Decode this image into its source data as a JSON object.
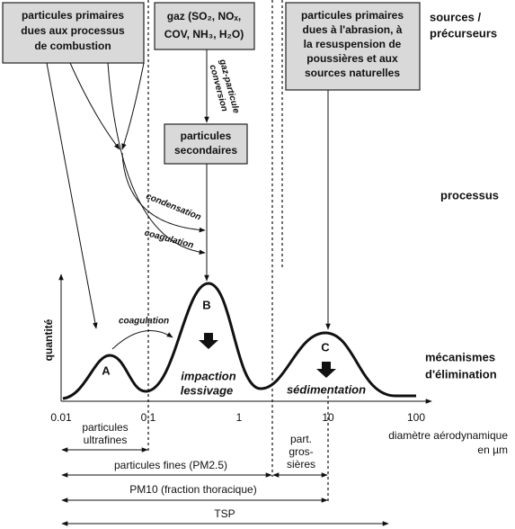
{
  "sources": [
    {
      "lines": [
        "particules primaires",
        "dues aux processus",
        "de combustion"
      ]
    },
    {
      "lines": [
        "gaz (SO₂, NOₓ,",
        "COV, NH₃, H₂O)"
      ]
    },
    {
      "lines": [
        "particules primaires",
        "dues à l'abrasion, à",
        "la resuspension de",
        "poussières et aux",
        "sources naturelles"
      ]
    }
  ],
  "secondary_box": {
    "lines": [
      "particules",
      "secondaires"
    ]
  },
  "side_labels": {
    "sources": [
      "sources /",
      "précurseurs"
    ],
    "processes": "processus",
    "removal": [
      "mécanismes",
      "d'élimination"
    ]
  },
  "process_labels": {
    "conversion": [
      "conversion",
      "gaz-particule"
    ],
    "condensation": "condensation",
    "coagulation": "coagulation",
    "coagulation_modes": "coagulation"
  },
  "modes": [
    "A",
    "B",
    "C"
  ],
  "mechanisms": {
    "impaction": [
      "impaction",
      "lessivage"
    ],
    "sedimentation": "sédimentation"
  },
  "axis": {
    "y_label": "quantité",
    "x_label": [
      "diamètre aérodynamique",
      "en µm"
    ],
    "ticks": [
      "0.01",
      "0.1",
      "1",
      "10",
      "100"
    ]
  },
  "ranges": {
    "ultrafine": [
      "particules",
      "ultrafines"
    ],
    "fine": "particules fines (PM2.5)",
    "coarse": [
      "part.",
      "gros-",
      "sières"
    ],
    "pm10": "PM10 (fraction thoracique)",
    "tsp": "TSP"
  }
}
